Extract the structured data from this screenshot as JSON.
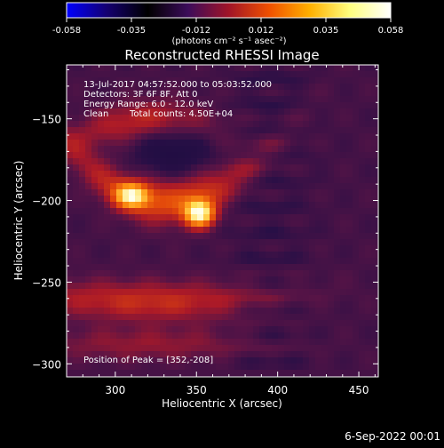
{
  "chart_data": {
    "type": "heatmap",
    "title": "Reconstructed RHESSI Image",
    "xlabel": "Heliocentric X (arcsec)",
    "ylabel": "Heliocentric Y (arcsec)",
    "xlim": [
      270,
      462
    ],
    "ylim": [
      -308,
      -117
    ],
    "xticks": [
      300,
      350,
      400,
      450
    ],
    "yticks": [
      -150,
      -200,
      -250,
      -300
    ],
    "colorbar": {
      "ticks": [
        "-0.058",
        "-0.035",
        "-0.012",
        "0.012",
        "0.035",
        "0.058"
      ],
      "range": [
        -0.058,
        0.058
      ],
      "label": "(photons cm⁻² s⁻¹ asec⁻²)",
      "colormap": [
        "#0000ff",
        "#140070",
        "#000000",
        "#3c0c5a",
        "#a01428",
        "#f05000",
        "#ffb000",
        "#ffff80",
        "#ffffff"
      ]
    },
    "annotations": {
      "time_range": "13-Jul-2017 04:57:52.000 to 05:03:52.000",
      "detectors": "Detectors: 3F 6F 8F, Att 0",
      "energy": "Energy Range: 6.0 - 12.0 keV",
      "method": "Clean",
      "counts": "Total counts: 4.50E+04",
      "peak": "Position of Peak = [352,-208]"
    },
    "sources": [
      {
        "x": 352,
        "y": -208,
        "amplitude": 0.058
      },
      {
        "x": 310,
        "y": -198,
        "amplitude": 0.045
      }
    ],
    "peak": {
      "x": 352,
      "y": -208,
      "value": 0.058
    }
  },
  "footer": {
    "date": "6-Sep-2022 00:01"
  }
}
